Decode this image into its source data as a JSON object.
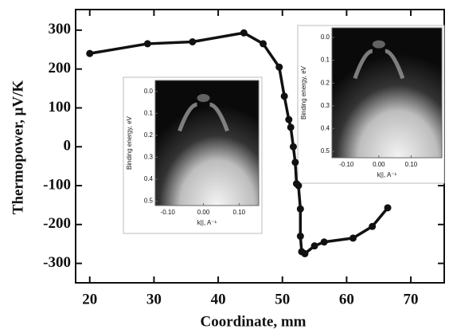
{
  "chart_data": {
    "type": "line",
    "x_label": "Coordinate, mm",
    "y_label": "Thermopower, μV/K",
    "x": [
      20,
      29,
      36,
      44,
      47,
      49.5,
      50.3,
      51,
      51.3,
      51.7,
      52,
      52.2,
      52.5,
      52.8,
      52.8,
      53,
      53.5,
      55,
      56.5,
      61,
      64,
      66.4
    ],
    "series": [
      {
        "color": "#111111",
        "values": [
          240,
          265,
          270,
          293,
          265,
          205,
          130,
          70,
          50,
          0,
          -40,
          -95,
          -100,
          -160,
          -230,
          -270,
          -275,
          -255,
          -245,
          -235,
          -205,
          -157
        ]
      }
    ],
    "xlim": [
      17.8,
      75.2
    ],
    "xticks": [
      20,
      30,
      40,
      50,
      60,
      70
    ],
    "ylim": [
      -350,
      353
    ],
    "yticks": [
      300,
      200,
      100,
      0,
      -100,
      -200,
      -300
    ],
    "grid": false,
    "insets": [
      {
        "y_label": "Binding energy, eV",
        "x_label": "k||, A⁻¹",
        "xlim": [
          -0.135,
          0.155
        ],
        "ylim": [
          -0.05,
          0.52
        ],
        "xticks": [
          {
            "value": -0.1,
            "label": "-0.10"
          },
          {
            "value": 0,
            "label": "0.00"
          },
          {
            "value": 0.1,
            "label": "0.10"
          }
        ],
        "yticks": [
          {
            "value": 0,
            "label": "0.0"
          },
          {
            "value": 0.1,
            "label": "0.1"
          },
          {
            "value": 0.2,
            "label": "0.2"
          },
          {
            "value": 0.3,
            "label": "0.3"
          },
          {
            "value": 0.4,
            "label": "0.4"
          },
          {
            "value": 0.5,
            "label": "0.5"
          }
        ]
      },
      {
        "y_label": "Binding energy, eV",
        "x_label": "k||, A⁻¹",
        "xlim": [
          -0.145,
          0.195
        ],
        "ylim": [
          -0.042,
          0.528
        ],
        "xticks": [
          {
            "value": -0.1,
            "label": "-0.10"
          },
          {
            "value": 0,
            "label": "0.00"
          },
          {
            "value": 0.1,
            "label": "0.10"
          }
        ],
        "yticks": [
          {
            "value": 0,
            "label": "0.0"
          },
          {
            "value": 0.1,
            "label": "0.1"
          },
          {
            "value": 0.2,
            "label": "0.2"
          },
          {
            "value": 0.3,
            "label": "0.3"
          },
          {
            "value": 0.4,
            "label": "0.4"
          },
          {
            "value": 0.5,
            "label": "0.5"
          }
        ]
      }
    ]
  }
}
